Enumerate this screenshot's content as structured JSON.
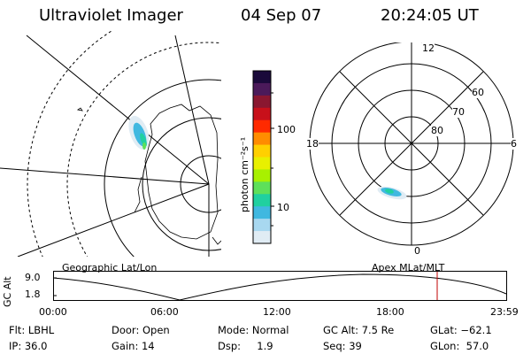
{
  "header": {
    "title": "Ultraviolet Imager",
    "date": "04 Sep 07",
    "time": "20:24:05 UT"
  },
  "colorbar": {
    "unit_label": "photon cm⁻²s⁻¹",
    "ticks": [
      "100",
      "10"
    ],
    "colors": [
      "#1a0a3a",
      "#4b1a5a",
      "#8a1730",
      "#c8101a",
      "#ff2a00",
      "#ff8c00",
      "#ffd000",
      "#e8f000",
      "#a8f000",
      "#5ee05a",
      "#20d0a0",
      "#40b8e0",
      "#a8d8f0",
      "#e0ecf4"
    ]
  },
  "polar_plot": {
    "mlt_labels": {
      "top": "12",
      "bottom": "0",
      "left": "18",
      "right": "6"
    },
    "mlat_labels": [
      "60",
      "70",
      "80"
    ]
  },
  "timeline": {
    "left_title": "Geographic Lat/Lon",
    "right_title": "Apex  MLat/MLT",
    "ylabel": "GC Alt",
    "yticks": [
      "9.0",
      "1.8"
    ],
    "xticks": [
      "00:00",
      "06:00",
      "12:00",
      "18:00",
      "23:59"
    ]
  },
  "info": {
    "row1": [
      "Flt: LBHL",
      "Door: Open",
      "Mode: Normal",
      "GC Alt: 7.5 Re",
      "GLat: −62.1"
    ],
    "row2": [
      "IP: 36.0",
      "Gain: 14",
      "Dsp:     1.9",
      "Seq: 39",
      "GLon:  57.0"
    ]
  },
  "colors": {
    "current_time_marker": "#c00000"
  }
}
